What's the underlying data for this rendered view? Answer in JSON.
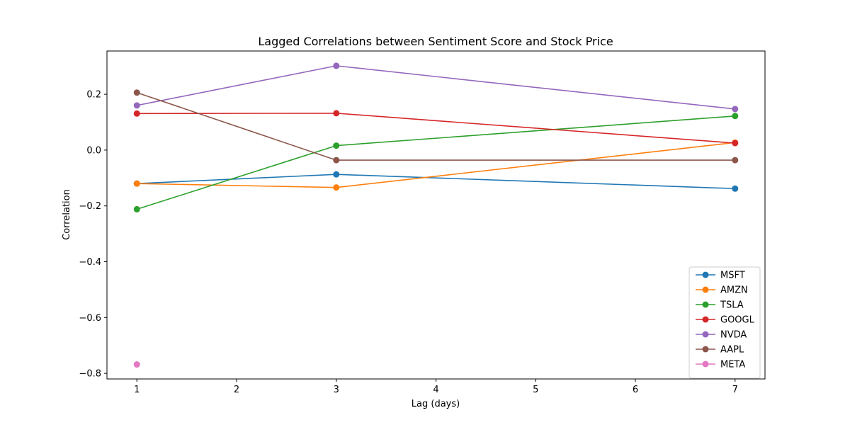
{
  "chart_data": {
    "type": "line",
    "title": "Lagged Correlations between Sentiment Score and Stock Price",
    "xlabel": "Lag (days)",
    "ylabel": "Correlation",
    "xlim": [
      0.7,
      7.3
    ],
    "ylim": [
      -0.82,
      0.355
    ],
    "xticks": [
      1,
      2,
      3,
      4,
      5,
      6,
      7
    ],
    "yticks": [
      -0.8,
      -0.6,
      -0.4,
      -0.2,
      0.0,
      0.2
    ],
    "xtick_labels": [
      "1",
      "2",
      "3",
      "4",
      "5",
      "6",
      "7"
    ],
    "ytick_labels": [
      "−0.8",
      "−0.6",
      "−0.4",
      "−0.2",
      "0.0",
      "0.2"
    ],
    "grid": false,
    "legend_position": "bottom-right",
    "series": [
      {
        "name": "MSFT",
        "color": "#1f77b4",
        "x": [
          1,
          3,
          7
        ],
        "y": [
          -0.12,
          -0.087,
          -0.138
        ]
      },
      {
        "name": "AMZN",
        "color": "#ff7f0e",
        "x": [
          1,
          3,
          7
        ],
        "y": [
          -0.12,
          -0.134,
          0.027
        ]
      },
      {
        "name": "TSLA",
        "color": "#2ca02c",
        "x": [
          1,
          3,
          7
        ],
        "y": [
          -0.212,
          0.016,
          0.122
        ]
      },
      {
        "name": "GOOGL",
        "color": "#d62728",
        "x": [
          1,
          3,
          7
        ],
        "y": [
          0.131,
          0.132,
          0.025
        ]
      },
      {
        "name": "NVDA",
        "color": "#9467bd",
        "x": [
          1,
          3,
          7
        ],
        "y": [
          0.16,
          0.302,
          0.147
        ]
      },
      {
        "name": "AAPL",
        "color": "#8c564b",
        "x": [
          1,
          3,
          7
        ],
        "y": [
          0.206,
          -0.036,
          -0.036
        ]
      },
      {
        "name": "META",
        "color": "#e377c2",
        "x": [
          1
        ],
        "y": [
          -0.768
        ]
      }
    ]
  }
}
